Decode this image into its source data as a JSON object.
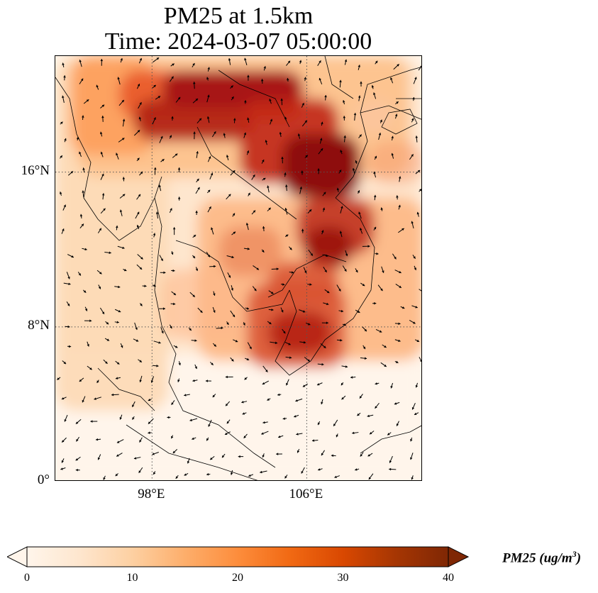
{
  "title_line1": "PM25 at 1.5km",
  "title_line2": "Time: 2024-03-07 05:00:00",
  "lat_labels": [
    {
      "text": "16°N",
      "lat": 16
    },
    {
      "text": "8°N",
      "lat": 8
    },
    {
      "text": "0°",
      "lat": 0
    }
  ],
  "lon_labels": [
    {
      "text": "98°E",
      "lon": 98
    },
    {
      "text": "106°E",
      "lon": 106
    }
  ],
  "colorbar": {
    "ticks": [
      "0",
      "10",
      "20",
      "30",
      "40"
    ],
    "min": 0,
    "max": 40,
    "label_main": "PM25 (ug/m",
    "label_sup": "3",
    "label_close": ")",
    "extend": "both",
    "colormap": [
      "#fff5eb",
      "#fee6ce",
      "#fdd0a2",
      "#fdae6b",
      "#fd8d3c",
      "#f16913",
      "#d94801",
      "#a63603",
      "#7f2704"
    ]
  },
  "map_extent": {
    "lon_min": 93,
    "lon_max": 112,
    "lat_min": 0,
    "lat_max": 22
  },
  "gridlines": "dotted",
  "overlay": "wind vectors"
}
